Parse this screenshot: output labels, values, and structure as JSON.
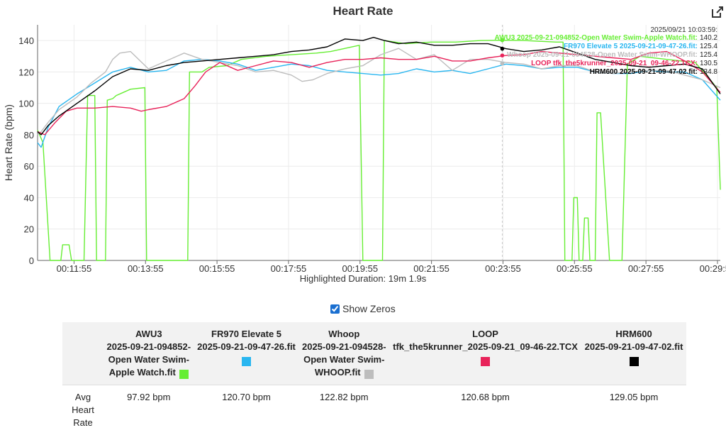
{
  "page": {
    "title": "Heart Rate",
    "show_zeros_label": "Show Zeros",
    "show_zeros_checked": true
  },
  "duration_text": "Highlighted Duration: 19m 1.9s",
  "tooltip": {
    "time": "2025/09/21 10:03:59:",
    "rows": [
      {
        "label": "AWU3 2025-09-21-094852-Open Water Swim-Apple Watch.fit:",
        "value": "140.2",
        "color": "#66ee33"
      },
      {
        "label": "FR970 Elevate 5 2025-09-21-09-47-26.fit:",
        "value": "125.4",
        "color": "#29b6f0"
      },
      {
        "label": "Whoop 2025-09-21-094528-Open Water Swim-WHOOP.fit:",
        "value": "125.4",
        "color": "#bdbdbd"
      },
      {
        "label": "LOOP tfk_the5krunner_2025-09-21_09-46-22.TCX:",
        "value": "130.5",
        "color": "#e8235a"
      },
      {
        "label": "HRM600 2025-09-21-09-47-02.fit:",
        "value": "134.8",
        "color": "#000000"
      }
    ]
  },
  "table": {
    "row_label": "Avg Heart Rate",
    "columns": [
      {
        "name_lines": [
          "AWU3",
          "2025-09-21-094852-",
          "Open Water Swim-",
          "Apple Watch.fit"
        ],
        "color": "#66ee33",
        "avg": "97.92 bpm"
      },
      {
        "name_lines": [
          "FR970 Elevate 5",
          "2025-09-21-09-47-26.fit"
        ],
        "color": "#29b6f0",
        "avg": "120.70 bpm"
      },
      {
        "name_lines": [
          "Whoop",
          "2025-09-21-094528-",
          "Open Water Swim-",
          "WHOOP.fit"
        ],
        "color": "#bdbdbd",
        "avg": "122.82 bpm"
      },
      {
        "name_lines": [
          "LOOP",
          "tfk_the5krunner_2025-09-21_09-46-22.TCX"
        ],
        "color": "#e8235a",
        "avg": "120.68 bpm"
      },
      {
        "name_lines": [
          "HRM600",
          "2025-09-21-09-47-02.fit"
        ],
        "color": "#000000",
        "avg": "129.05 bpm"
      }
    ]
  },
  "chart_data": {
    "type": "line",
    "title": "Heart Rate",
    "xlabel": "",
    "ylabel": "Heart Rate (bpm)",
    "x_unit": "minutes",
    "xlim": [
      10.9,
      30.0
    ],
    "ylim": [
      0,
      150
    ],
    "x_ticks": [
      {
        "x": 11.92,
        "label": "00:11:55"
      },
      {
        "x": 13.92,
        "label": "00:13:55"
      },
      {
        "x": 15.92,
        "label": "00:15:55"
      },
      {
        "x": 17.92,
        "label": "00:17:55"
      },
      {
        "x": 19.92,
        "label": "00:19:55"
      },
      {
        "x": 21.92,
        "label": "00:21:55"
      },
      {
        "x": 23.92,
        "label": "00:23:55"
      },
      {
        "x": 25.92,
        "label": "00:25:55"
      },
      {
        "x": 27.92,
        "label": "00:27:55"
      },
      {
        "x": 29.92,
        "label": "00:29:55"
      }
    ],
    "y_ticks": [
      0,
      20,
      40,
      60,
      80,
      100,
      120,
      140
    ],
    "grid": true,
    "cursor_x": 23.9,
    "series": [
      {
        "name": "AWU3 2025-09-21-094852-Open Water Swim-Apple Watch.fit",
        "color": "#66ee33",
        "marker": 140.2,
        "x": [
          10.9,
          11.05,
          11.25,
          11.55,
          11.6,
          11.78,
          11.85,
          12.2,
          12.3,
          12.5,
          12.55,
          12.8,
          12.85,
          13.0,
          13.1,
          13.3,
          13.5,
          13.9,
          13.95,
          14.5,
          14.55,
          15.1,
          15.15,
          15.5,
          15.7,
          16.2,
          16.6,
          17.3,
          18.0,
          18.7,
          19.1,
          19.5,
          19.9,
          20.0,
          20.05,
          20.55,
          20.6,
          21.2,
          21.9,
          22.6,
          23.3,
          23.9,
          24.5,
          25.4,
          25.6,
          25.65,
          25.85,
          25.9,
          26.0,
          26.05,
          26.15,
          26.2,
          26.3,
          26.35,
          26.5,
          26.55,
          26.65,
          26.9,
          27.25,
          27.4,
          27.75,
          28.5,
          29.3,
          29.9,
          30.0
        ],
        "y": [
          83,
          75,
          0,
          0,
          10,
          10,
          0,
          0,
          105,
          105,
          0,
          0,
          102,
          103,
          105,
          107,
          109,
          110,
          0,
          0,
          0,
          0,
          120,
          120,
          123,
          124,
          128,
          130,
          131,
          132,
          133,
          135,
          137,
          0,
          0,
          0,
          140,
          138,
          139,
          139,
          140,
          140.2,
          140,
          139,
          139,
          0,
          0,
          40,
          40,
          0,
          0,
          27,
          27,
          0,
          0,
          94,
          94,
          0,
          0,
          125,
          130,
          128,
          126,
          110,
          45
        ]
      },
      {
        "name": "FR970 Elevate 5 2025-09-21-09-47-26.fit",
        "color": "#29b6f0",
        "marker": 125.4,
        "x": [
          10.9,
          11.0,
          11.2,
          11.5,
          12.0,
          12.5,
          13.0,
          13.5,
          14.0,
          14.5,
          15.0,
          15.5,
          16.0,
          16.5,
          17.0,
          17.5,
          18.0,
          18.5,
          19.0,
          19.5,
          20.0,
          20.5,
          21.0,
          21.5,
          22.0,
          22.5,
          23.0,
          23.5,
          24.0,
          24.5,
          25.0,
          25.5,
          26.0,
          26.5,
          27.0,
          27.5,
          28.0,
          28.5,
          29.0,
          29.5,
          30.0
        ],
        "y": [
          75,
          72,
          85,
          98,
          106,
          113,
          120,
          123,
          120,
          121,
          127,
          128,
          127,
          125,
          121,
          123,
          125,
          124,
          121,
          120,
          119,
          118,
          119,
          122,
          120,
          121,
          119,
          122,
          125,
          124,
          122,
          123,
          123,
          120,
          119,
          119,
          121,
          120,
          120,
          115,
          102
        ]
      },
      {
        "name": "Whoop 2025-09-21-094528-Open Water Swim-WHOOP.fit",
        "color": "#bdbdbd",
        "marker": 125.4,
        "x": [
          10.9,
          11.0,
          11.2,
          11.5,
          12.0,
          12.4,
          12.8,
          13.0,
          13.2,
          13.5,
          14.0,
          14.5,
          15.0,
          15.5,
          16.0,
          16.5,
          17.0,
          17.5,
          18.0,
          18.3,
          18.6,
          19.0,
          19.5,
          20.0,
          20.5,
          21.0,
          21.5,
          22.0,
          22.5,
          23.0,
          23.5,
          24.0,
          24.5,
          25.0,
          25.5,
          26.0,
          26.5,
          27.0,
          27.5,
          28.0,
          28.5,
          29.0,
          29.5,
          30.0
        ],
        "y": [
          80,
          82,
          88,
          96,
          104,
          113,
          120,
          128,
          132,
          133,
          122,
          127,
          132,
          128,
          126,
          124,
          120,
          121,
          118,
          114,
          115,
          119,
          122,
          124,
          131,
          135,
          128,
          131,
          121,
          128,
          128,
          126,
          125,
          122,
          124,
          124,
          120,
          119,
          120,
          121,
          121,
          118,
          115,
          110
        ]
      },
      {
        "name": "LOOP tfk_the5krunner_2025-09-21_09-46-22.TCX",
        "color": "#e8235a",
        "marker": 130.5,
        "x": [
          10.9,
          11.1,
          11.4,
          11.7,
          12.0,
          12.5,
          13.0,
          13.5,
          13.8,
          14.0,
          14.5,
          15.0,
          15.3,
          15.6,
          16.0,
          16.5,
          17.0,
          17.5,
          18.0,
          18.5,
          19.0,
          19.5,
          20.0,
          20.5,
          21.0,
          21.5,
          22.0,
          22.5,
          23.0,
          23.5,
          24.0,
          24.5,
          25.0,
          25.5,
          26.0,
          26.5,
          27.0,
          27.5,
          28.0,
          28.5,
          29.0,
          29.5,
          30.0
        ],
        "y": [
          82,
          80,
          88,
          95,
          97,
          97,
          98,
          97,
          95,
          96,
          98,
          103,
          111,
          120,
          126,
          121,
          124,
          127,
          126,
          123,
          126,
          128,
          128,
          129,
          128,
          128,
          130,
          127,
          127,
          129,
          130.5,
          131,
          133,
          132,
          131,
          130,
          129,
          128,
          132,
          133,
          127,
          120,
          107
        ]
      },
      {
        "name": "HRM600 2025-09-21-09-47-02.fit",
        "color": "#000000",
        "marker": 134.8,
        "x": [
          10.9,
          11.0,
          11.2,
          11.5,
          12.0,
          12.5,
          13.0,
          13.5,
          14.0,
          14.5,
          15.0,
          15.5,
          16.0,
          16.5,
          17.0,
          17.5,
          18.0,
          18.5,
          19.0,
          19.5,
          20.0,
          20.3,
          20.6,
          21.0,
          21.5,
          22.0,
          22.5,
          23.0,
          23.5,
          24.0,
          24.5,
          25.0,
          25.5,
          26.0,
          26.5,
          27.0,
          27.5,
          28.0,
          28.5,
          29.0,
          29.5,
          30.0
        ],
        "y": [
          82,
          80,
          86,
          92,
          100,
          108,
          117,
          122,
          121,
          124,
          126,
          127,
          128,
          129,
          130,
          131,
          133,
          134,
          136,
          141,
          140,
          142,
          140,
          138,
          139,
          137,
          137,
          138,
          138,
          134.8,
          133,
          134,
          136,
          132,
          128,
          126,
          124,
          123,
          124,
          125,
          122,
          106
        ]
      }
    ]
  }
}
